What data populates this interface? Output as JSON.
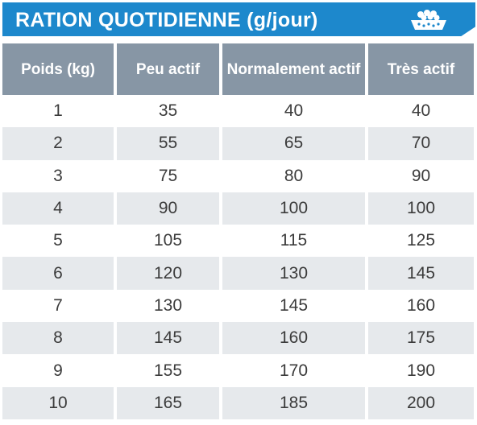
{
  "header": {
    "title": "RATION QUOTIDIENNE (g/jour)",
    "icon": "food-bowl-icon",
    "accent_color": "#1d88cc"
  },
  "table": {
    "header_color": "#8796a5",
    "stripe_color": "#e6e9ec",
    "columns": [
      "Poids (kg)",
      "Peu actif",
      "Normalement actif",
      "Très actif"
    ],
    "rows": [
      [
        "1",
        "35",
        "40",
        "40"
      ],
      [
        "2",
        "55",
        "65",
        "70"
      ],
      [
        "3",
        "75",
        "80",
        "90"
      ],
      [
        "4",
        "90",
        "100",
        "100"
      ],
      [
        "5",
        "105",
        "115",
        "125"
      ],
      [
        "6",
        "120",
        "130",
        "145"
      ],
      [
        "7",
        "130",
        "145",
        "160"
      ],
      [
        "8",
        "145",
        "160",
        "175"
      ],
      [
        "9",
        "155",
        "170",
        "190"
      ],
      [
        "10",
        "165",
        "185",
        "200"
      ]
    ]
  }
}
